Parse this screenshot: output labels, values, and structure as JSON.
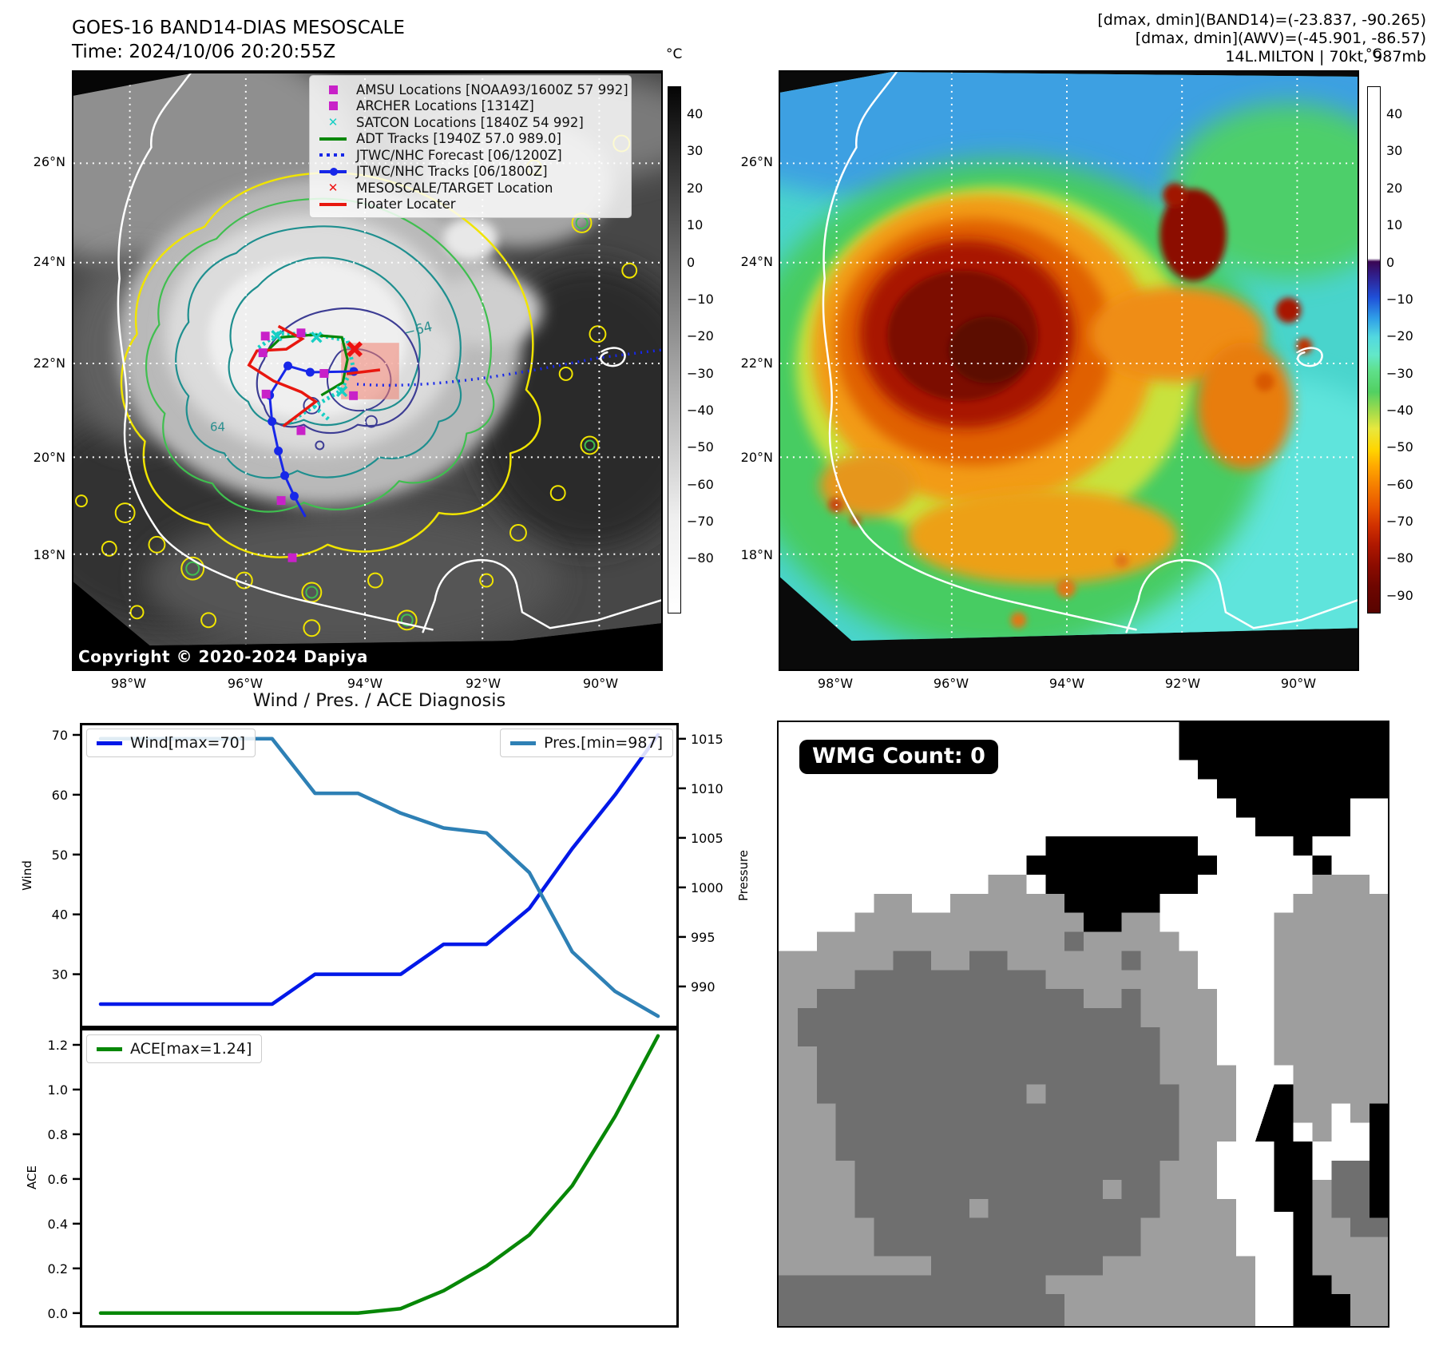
{
  "header": {
    "title_line1": "GOES-16 BAND14-DIAS MESOSCALE",
    "title_line2": "Time: 2024/10/06 20:20:55Z",
    "right_line1": "[dmax, dmin](BAND14)=(-23.837, -90.265)",
    "right_line2": "[dmax, dmin](AWV)=(-45.901, -86.57)",
    "right_line3": "14L.MILTON | 70kt, 987mb"
  },
  "left_map": {
    "legend_items": [
      {
        "type": "square-magenta",
        "label": "AMSU Locations [NOAA93/1600Z 57 992]"
      },
      {
        "type": "square-magenta",
        "label": "ARCHER Locations [1314Z]"
      },
      {
        "type": "x-cyan",
        "label": "SATCON Locations [1840Z 54 992]"
      },
      {
        "type": "line-green",
        "label": "ADT Tracks [1940Z 57.0 989.0]"
      },
      {
        "type": "dotted-blue",
        "label": "JTWC/NHC Forecast [06/1200Z]"
      },
      {
        "type": "line-dot-blue",
        "label": "JTWC/NHC Tracks [06/1800Z]"
      },
      {
        "type": "x-red",
        "label": "MESOSCALE/TARGET Location"
      },
      {
        "type": "line-red",
        "label": "Floater Locater"
      }
    ],
    "copyright": "Copyright © 2020-2024 Dapiya",
    "contour_label_a": "−64",
    "contour_label_b": "64"
  },
  "axes": {
    "lat_labels": [
      "26°N",
      "24°N",
      "22°N",
      "20°N",
      "18°N"
    ],
    "lon_labels": [
      "98°W",
      "96°W",
      "94°W",
      "92°W",
      "90°W"
    ]
  },
  "colorbar_left": {
    "unit": "°C",
    "ticks": [
      "40",
      "30",
      "20",
      "10",
      "0",
      "−10",
      "−20",
      "−30",
      "−40",
      "−50",
      "−60",
      "−70",
      "−80"
    ]
  },
  "colorbar_right": {
    "unit": "°C",
    "ticks": [
      "40",
      "30",
      "20",
      "10",
      "0",
      "−10",
      "−20",
      "−30",
      "−40",
      "−50",
      "−60",
      "−70",
      "−80",
      "−90"
    ]
  },
  "charts": {
    "title": "Wind / Pres. / ACE Diagnosis"
  },
  "wmg": {
    "label": "WMG Count: 0"
  },
  "chart_data": [
    {
      "type": "line",
      "panel": "wind_pressure",
      "title": "Wind / Pres. / ACE Diagnosis",
      "x": [
        0,
        1,
        2,
        3,
        4,
        5,
        6,
        7,
        8,
        9,
        10,
        11,
        12,
        13
      ],
      "series": [
        {
          "name": "Wind[max=70]",
          "axis": "left",
          "color": "#0018e8",
          "values": [
            25,
            25,
            25,
            25,
            25,
            30,
            30,
            30,
            35,
            35,
            41,
            51,
            60,
            70
          ]
        },
        {
          "name": "Pres.[min=987]",
          "axis": "right",
          "color": "#2e80b5",
          "values": [
            1015,
            1015,
            1015,
            1015,
            1015,
            1009.5,
            1009.5,
            1007.5,
            1006,
            1005.5,
            1001.5,
            993.5,
            989.5,
            987
          ]
        }
      ],
      "ylabel_left": "Wind",
      "ylim_left": [
        21,
        72
      ],
      "yticks_left": [
        30,
        40,
        50,
        60,
        70
      ],
      "ylabel_right": "Pressure",
      "ylim_right": [
        985.8,
        1016.6
      ],
      "yticks_right": [
        990,
        995,
        1000,
        1005,
        1010,
        1015
      ],
      "grid": false,
      "legend_position": "top-left and top-right",
      "x_tick_labels_visible": false
    },
    {
      "type": "line",
      "panel": "ace",
      "x": [
        0,
        1,
        2,
        3,
        4,
        5,
        6,
        7,
        8,
        9,
        10,
        11,
        12,
        13
      ],
      "series": [
        {
          "name": "ACE[max=1.24]",
          "axis": "left",
          "color": "#078707",
          "values": [
            0,
            0,
            0,
            0,
            0,
            0,
            0,
            0.02,
            0.1,
            0.21,
            0.35,
            0.57,
            0.88,
            1.24
          ]
        }
      ],
      "ylabel_left": "ACE",
      "ylim_left": [
        -0.065,
        1.275
      ],
      "yticks_left": [
        0.0,
        0.2,
        0.4,
        0.6,
        0.8,
        1.0,
        1.2
      ],
      "ytick_labels_left": [
        "0.0",
        "0.2",
        "0.4",
        "0.6",
        "0.8",
        "1.0",
        "1.2"
      ],
      "grid": false,
      "legend_position": "top-left",
      "x_tick_labels_visible": false
    }
  ]
}
